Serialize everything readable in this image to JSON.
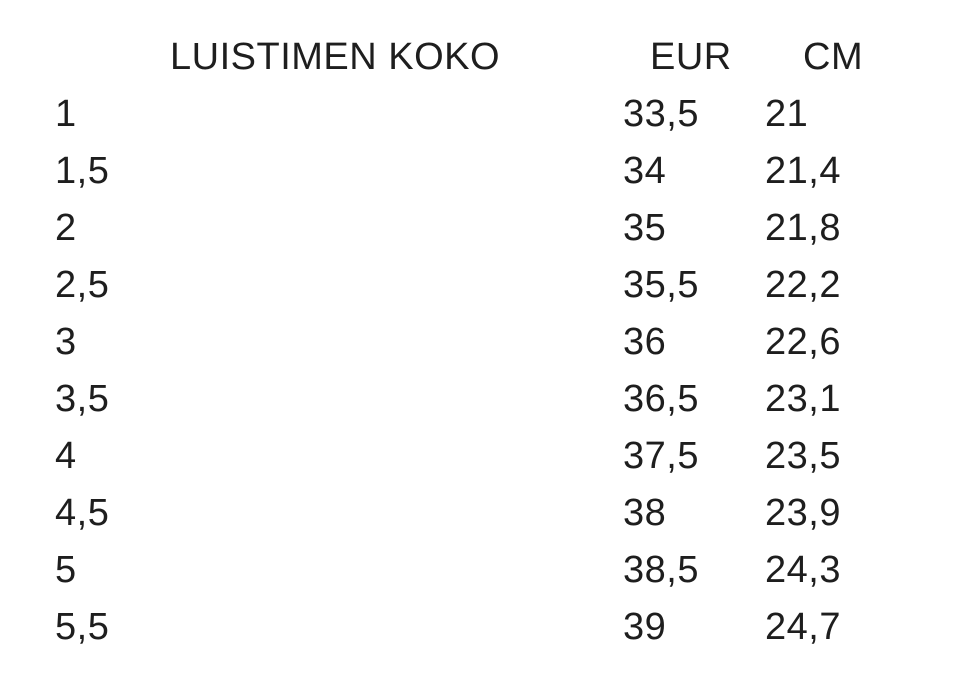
{
  "page": {
    "background_color": "#ffffff",
    "text_color": "#1e1e1e"
  },
  "chart_data": {
    "type": "table",
    "title": "LUISTIMEN KOKO",
    "columns": [
      "LUISTIMEN KOKO",
      "EUR",
      "CM"
    ],
    "rows": [
      [
        "1",
        "33,5",
        "21"
      ],
      [
        "1,5",
        "34",
        "21,4"
      ],
      [
        "2",
        "35",
        "21,8"
      ],
      [
        "2,5",
        "35,5",
        "22,2"
      ],
      [
        "3",
        "36",
        "22,6"
      ],
      [
        "3,5",
        "36,5",
        "23,1"
      ],
      [
        "4",
        "37,5",
        "23,5"
      ],
      [
        "4,5",
        "38",
        "23,9"
      ],
      [
        "5",
        "38,5",
        "24,3"
      ],
      [
        "5,5",
        "39",
        "24,7"
      ]
    ],
    "layout": {
      "gridlines": false,
      "header_row": true,
      "decimal_separator": ","
    }
  }
}
